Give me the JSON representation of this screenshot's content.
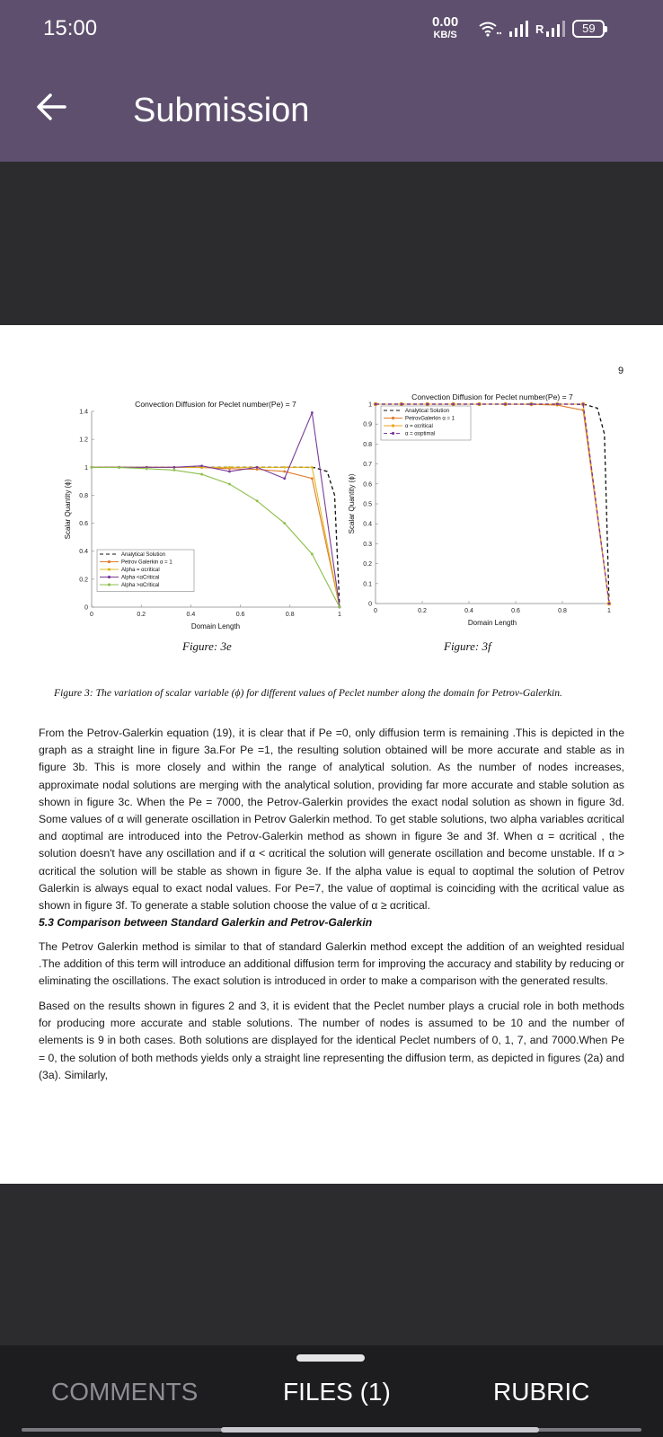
{
  "status_bar": {
    "time": "15:00",
    "net_speed": "0.00",
    "net_unit": "KB/S",
    "carrier": "R",
    "battery": "59"
  },
  "app_bar": {
    "title": "Submission",
    "back_icon": "arrow-back-icon"
  },
  "document": {
    "page_number": "9",
    "figure_e": {
      "label": "Figure: 3e",
      "chart_data": {
        "type": "line",
        "title": "Convection Diffusion for Peclet number(Pe) = 7",
        "xlabel": "Domain Length",
        "ylabel": "Scalar Quantity (ϕ)",
        "xlim": [
          0,
          1
        ],
        "ylim": [
          0,
          1.4
        ],
        "xticks": [
          "0",
          "0.2",
          "0.4",
          "0.6",
          "0.8",
          "1"
        ],
        "yticks": [
          "0",
          "0.2",
          "0.4",
          "0.6",
          "0.8",
          "1",
          "1.2",
          "1.4"
        ],
        "legend": [
          "Analytical Solution",
          "Petrov Galerkin α = 1",
          "Alpha = αcritical",
          "Alpha <αCritical",
          "Alpha >αCritical"
        ],
        "series": [
          {
            "name": "Analytical Solution",
            "color": "#111111",
            "dash": "4,3",
            "x": [
              0,
              0.1,
              0.2,
              0.3,
              0.4,
              0.5,
              0.6,
              0.7,
              0.8,
              0.85,
              0.9,
              0.95,
              0.98,
              1.0
            ],
            "y": [
              1,
              1,
              1,
              1,
              1,
              1,
              1,
              1,
              1,
              1,
              0.997,
              0.97,
              0.8,
              0
            ]
          },
          {
            "name": "Petrov Galerkin α = 1",
            "color": "#e07b2a",
            "x": [
              0,
              0.111,
              0.222,
              0.333,
              0.444,
              0.556,
              0.667,
              0.778,
              0.889,
              1.0
            ],
            "y": [
              1,
              1,
              1,
              0.999,
              0.998,
              0.99,
              0.985,
              0.97,
              0.92,
              0
            ]
          },
          {
            "name": "Alpha = αcritical",
            "color": "#e0b81e",
            "x": [
              0,
              0.111,
              0.222,
              0.333,
              0.444,
              0.556,
              0.667,
              0.778,
              0.889,
              1.0
            ],
            "y": [
              1,
              1,
              1,
              1,
              1,
              1,
              1,
              1,
              1,
              0
            ]
          },
          {
            "name": "Alpha <αCritical",
            "color": "#7b3a9a",
            "x": [
              0,
              0.111,
              0.222,
              0.333,
              0.444,
              0.556,
              0.667,
              0.778,
              0.889,
              1.0
            ],
            "y": [
              1,
              1,
              1.0,
              1.0,
              1.01,
              0.97,
              1.0,
              0.92,
              1.39,
              0
            ]
          },
          {
            "name": "Alpha >αCritical",
            "color": "#8cbf4a",
            "x": [
              0,
              0.111,
              0.222,
              0.333,
              0.444,
              0.556,
              0.667,
              0.778,
              0.889,
              1.0
            ],
            "y": [
              1,
              0.998,
              0.99,
              0.98,
              0.95,
              0.88,
              0.76,
              0.6,
              0.38,
              0
            ]
          }
        ]
      }
    },
    "figure_f": {
      "label": "Figure: 3f",
      "chart_data": {
        "type": "line",
        "title": "Convection Diffusion for Peclet number(Pe) = 7",
        "xlabel": "Domain Length",
        "ylabel": "Scalar Quantity (ϕ)",
        "xlim": [
          0,
          1
        ],
        "ylim": [
          0,
          1
        ],
        "xticks": [
          "0",
          "0.2",
          "0.4",
          "0.6",
          "0.8",
          "1"
        ],
        "yticks": [
          "0",
          "0.1",
          "0.2",
          "0.3",
          "0.4",
          "0.5",
          "0.6",
          "0.7",
          "0.8",
          "0.9",
          "1"
        ],
        "legend": [
          "Analytical Solution",
          "PetrovGalerkin α = 1",
          "α = αcritical",
          "α = αoptimal"
        ],
        "series": [
          {
            "name": "Analytical Solution",
            "color": "#111111",
            "dash": "4,3",
            "x": [
              0,
              0.1,
              0.2,
              0.3,
              0.4,
              0.5,
              0.6,
              0.7,
              0.8,
              0.85,
              0.9,
              0.95,
              0.98,
              1.0
            ],
            "y": [
              1,
              1,
              1,
              1,
              1,
              1,
              1,
              1,
              1,
              1,
              0.997,
              0.98,
              0.85,
              0
            ]
          },
          {
            "name": "PetrovGalerkin α = 1",
            "color": "#e07b2a",
            "x": [
              0,
              0.111,
              0.222,
              0.333,
              0.444,
              0.556,
              0.667,
              0.778,
              0.889,
              1.0
            ],
            "y": [
              1,
              1,
              1,
              1,
              1,
              1,
              0.999,
              0.995,
              0.97,
              0
            ]
          },
          {
            "name": "α = αcritical",
            "color": "#f0a21c",
            "x": [
              0,
              0.111,
              0.222,
              0.333,
              0.444,
              0.556,
              0.667,
              0.778,
              0.889,
              1.0
            ],
            "y": [
              1,
              1,
              1,
              1,
              1,
              1,
              1,
              1,
              1,
              0
            ]
          },
          {
            "name": "α = αoptimal",
            "color": "#7b3a9a",
            "dash": "4,3",
            "x": [
              0,
              0.111,
              0.222,
              0.333,
              0.444,
              0.556,
              0.667,
              0.778,
              0.889,
              1.0
            ],
            "y": [
              1,
              1,
              1,
              1,
              1,
              1,
              1,
              1,
              1,
              0
            ]
          }
        ]
      }
    },
    "caption": "Figure 3: The variation of scalar variable (ϕ) for different values of Peclet number along the domain for Petrov-Galerkin.",
    "paragraph_1": "From the Petrov-Galerkin equation (19), it is clear that if Pe =0, only diffusion term is remaining .This is depicted in the graph as a straight line in figure 3a.For Pe =1, the resulting solution obtained will be more accurate and stable as in figure 3b. This is more closely and within the range of analytical solution. As the number of nodes increases, approximate nodal solutions are merging with the analytical solution, providing far more accurate and stable solution as shown in figure 3c. When the Pe = 7000, the Petrov-Galerkin provides the exact nodal solution as shown in figure 3d. Some values of α will generate oscillation in Petrov Galerkin method. To get stable solutions, two alpha variables αcritical and αoptimal are introduced into the Petrov-Galerkin method as shown in figure 3e and 3f. When α = αcritical , the solution doesn't have any oscillation and if α < αcritical the solution will generate oscillation and become unstable. If α > αcritical the solution will be stable as shown in figure 3e. If the alpha value is equal to αoptimal the solution of Petrov Galerkin is always equal to exact nodal values. For Pe=7, the value of αoptimal is coinciding with the αcritical value as shown in figure 3f. To generate a stable solution choose the value of α ≥ αcritical.",
    "section_heading": "5.3 Comparison between Standard Galerkin and Petrov-Galerkin",
    "paragraph_2": "The Petrov Galerkin method is similar to that of standard Galerkin method except the addition of an weighted residual .The addition of this term will introduce an additional diffusion term for improving the accuracy and stability by reducing or eliminating the oscillations. The exact solution is introduced in order to make a comparison with the generated results.",
    "paragraph_3": "Based on the results shown in figures 2 and 3, it is evident that the Peclet number plays a crucial role in both methods for producing more accurate and stable solutions. The number of nodes is assumed to be 10 and the number of elements is 9 in both cases. Both solutions are displayed for the identical Peclet numbers of 0, 1, 7, and 7000.When Pe = 0, the solution of both methods yields only a straight line representing the diffusion term, as depicted in figures (2a) and (3a). Similarly,"
  },
  "bottom_nav": {
    "comments": "COMMENTS",
    "files": "FILES (1)",
    "rubric": "RUBRIC"
  }
}
